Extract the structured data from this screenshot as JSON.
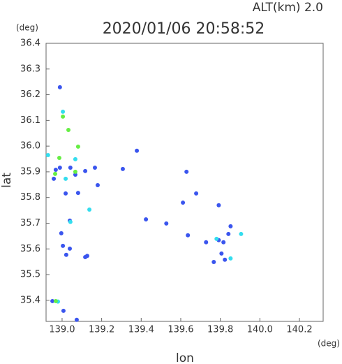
{
  "chart_data": {
    "type": "scatter",
    "title": "2020/01/06 20:58:52",
    "subtitle": "ALT(km) 2.0",
    "y_unit": "(deg)",
    "x_unit": "(deg)",
    "ylabel": "lat",
    "xlabel": "lon",
    "xlim": [
      138.919,
      140.32
    ],
    "ylim": [
      35.318,
      36.4
    ],
    "xticks": [
      {
        "value": 139,
        "label": "139.0"
      },
      {
        "value": 139.2,
        "label": "139.2"
      },
      {
        "value": 139.4,
        "label": "139.4"
      },
      {
        "value": 139.6,
        "label": "139.6"
      },
      {
        "value": 139.8,
        "label": "139.8"
      },
      {
        "value": 140,
        "label": "140.0"
      },
      {
        "value": 140.2,
        "label": "140.2"
      }
    ],
    "yticks": [
      {
        "value": 35.4,
        "label": "35.4"
      },
      35.5,
      35.6,
      35.7,
      35.8,
      35.9,
      {
        "value": 36,
        "label": "36.0"
      },
      36.1,
      36.2,
      36.3,
      36.4
    ],
    "series": [
      {
        "color": "#3a55ee",
        "x": [
          138.989,
          138.968,
          138.958,
          138.989,
          139.042,
          139.067,
          139.117,
          139.166,
          139.18,
          139.018,
          139.081,
          138.996,
          139.004,
          139.039,
          139.021,
          139.039,
          139.117,
          139.127,
          138.951,
          139.007,
          139.074,
          139.307,
          139.378,
          139.629,
          139.527,
          139.424,
          139.636,
          139.678,
          139.611,
          139.792,
          139.728,
          139.792,
          139.816,
          139.767,
          139.841,
          139.852,
          139.823,
          139.806
        ],
        "values": [
          36.229,
          35.908,
          35.873,
          35.916,
          35.916,
          35.889,
          35.903,
          35.916,
          35.848,
          35.816,
          35.818,
          35.661,
          35.612,
          35.601,
          35.577,
          35.71,
          35.568,
          35.573,
          35.397,
          35.359,
          35.324,
          35.911,
          35.982,
          35.9,
          35.699,
          35.715,
          35.653,
          35.816,
          35.78,
          35.77,
          35.626,
          35.634,
          35.626,
          35.549,
          35.658,
          35.688,
          35.558,
          35.582
        ]
      },
      {
        "color": "#33ddee",
        "x": [
          138.929,
          139.018,
          139.042,
          139.004,
          139.138,
          138.979,
          139.905,
          139.852,
          139.781,
          139.067
        ],
        "values": [
          35.965,
          35.873,
          35.705,
          36.134,
          35.753,
          35.395,
          35.658,
          35.563,
          35.639,
          35.949
        ]
      },
      {
        "color": "#66ee44",
        "x": [
          139.032,
          138.986,
          139.004,
          139.067,
          138.968,
          139.081,
          138.965
        ],
        "values": [
          36.063,
          35.954,
          36.115,
          35.9,
          35.397,
          35.998,
          35.892
        ]
      }
    ]
  }
}
